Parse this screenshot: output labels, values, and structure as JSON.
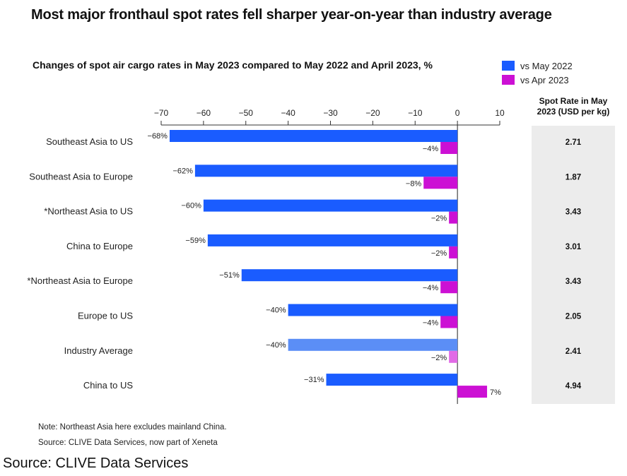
{
  "title": "Most major fronthaul spot rates fell sharper year-on-year than industry average",
  "chart_data": {
    "type": "bar",
    "orientation": "horizontal",
    "title": "Changes of spot air cargo rates in May 2023 compared to May 2022 and April 2023, %",
    "xlim": [
      -70,
      10
    ],
    "xticks": [
      -70,
      -60,
      -50,
      -40,
      -30,
      -20,
      -10,
      0,
      10
    ],
    "categories": [
      "Southeast Asia to US",
      "Southeast Asia to Europe",
      "*Northeast Asia to US",
      "China to Europe",
      "*Northeast Asia to Europe",
      "Europe to US",
      "Industry Average",
      "China to US"
    ],
    "series": [
      {
        "name": "vs May 2022",
        "color": "#1a5cff",
        "values": [
          -68,
          -62,
          -60,
          -59,
          -51,
          -40,
          -40,
          -31
        ],
        "labels": [
          "-68%",
          "-62%",
          "-60%",
          "-59%",
          "-51%",
          "-40%",
          "-40%",
          "-31%"
        ]
      },
      {
        "name": "vs Apr 2023",
        "color": "#cc10d4",
        "values": [
          -4,
          -8,
          -2,
          -2,
          -4,
          -4,
          -2,
          7
        ],
        "labels": [
          "-4%",
          "-8%",
          "-2%",
          "-2%",
          "-4%",
          "-4%",
          "-2%",
          "7%"
        ]
      }
    ],
    "highlight": {
      "category": "Industry Average",
      "colors": [
        "#5b8ef6",
        "#e16ae6"
      ]
    },
    "legend_position": "top-right",
    "spot_rate_header": "Spot Rate in May 2023 (USD per kg)",
    "spot_rates": [
      "2.71",
      "1.87",
      "3.43",
      "3.01",
      "3.43",
      "2.05",
      "2.41",
      "4.94"
    ]
  },
  "notes": {
    "note": "Note: Northeast Asia here excludes mainland China.",
    "source": "Source: CLIVE Data Services, now part of Xeneta"
  },
  "caption": "Source: CLIVE Data Services"
}
